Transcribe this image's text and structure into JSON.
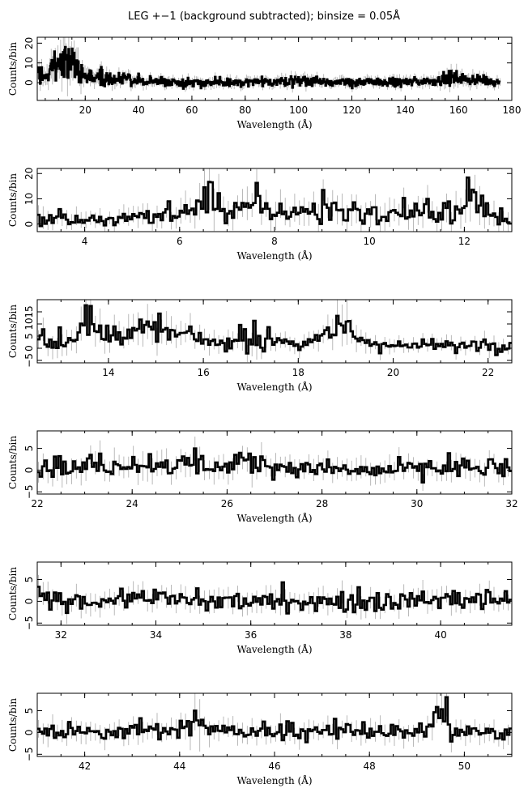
{
  "figure": {
    "title": "LEG +−1 (background subtracted); binsize = 0.05Å"
  },
  "chart_data": [
    {
      "type": "line",
      "title": "",
      "xlabel": "Wavelength (Å)",
      "ylabel": "Counts/bin",
      "xlim": [
        2,
        180
      ],
      "ylim": [
        -9,
        23
      ],
      "xticks": [
        20,
        40,
        60,
        80,
        100,
        120,
        140,
        160,
        180
      ],
      "yticks": [
        0,
        10,
        20
      ],
      "grid": false,
      "data_range": [
        2,
        175.5
      ],
      "bin_width": 0.05,
      "series": [
        {
          "values": [
            [
              5,
              3
            ],
            [
              8,
              10
            ],
            [
              10,
              8
            ],
            [
              12,
              12
            ],
            [
              15,
              11
            ],
            [
              18,
              5
            ],
            [
              20,
              3
            ],
            [
              30,
              2
            ],
            [
              40,
              1
            ],
            [
              60,
              0
            ],
            [
              80,
              0
            ],
            [
              100,
              1
            ],
            [
              120,
              0
            ],
            [
              140,
              0
            ],
            [
              150,
              1
            ],
            [
              155,
              2
            ],
            [
              160,
              2
            ],
            [
              170,
              1
            ],
            [
              175.5,
              0
            ]
          ]
        }
      ]
    },
    {
      "type": "line",
      "title": "",
      "xlabel": "Wavelength (Å)",
      "ylabel": "Counts/bin",
      "xlim": [
        3,
        13
      ],
      "ylim": [
        -3,
        22
      ],
      "xticks": [
        4,
        6,
        8,
        10,
        12
      ],
      "yticks": [
        0,
        10,
        20
      ],
      "grid": false,
      "bin_width": 0.05,
      "series": [
        {
          "values": [
            [
              3,
              3
            ],
            [
              3.5,
              2
            ],
            [
              4,
              2
            ],
            [
              4.5,
              1
            ],
            [
              5,
              3
            ],
            [
              5.5,
              3
            ],
            [
              6,
              4
            ],
            [
              6.3,
              6
            ],
            [
              6.55,
              14
            ],
            [
              6.7,
              8
            ],
            [
              7,
              5
            ],
            [
              7.5,
              6
            ],
            [
              8,
              5
            ],
            [
              8.5,
              5
            ],
            [
              9,
              5
            ],
            [
              9.5,
              6
            ],
            [
              10,
              4
            ],
            [
              10.5,
              5
            ],
            [
              11,
              5
            ],
            [
              11.5,
              5
            ],
            [
              12,
              6
            ],
            [
              12.05,
              15
            ],
            [
              12.2,
              10
            ],
            [
              12.5,
              4
            ],
            [
              13,
              2
            ]
          ]
        }
      ]
    },
    {
      "type": "line",
      "title": "",
      "xlabel": "Wavelength (Å)",
      "ylabel": "Counts/bin",
      "xlim": [
        12.5,
        22.5
      ],
      "ylim": [
        -6,
        20
      ],
      "xticks": [
        14,
        16,
        18,
        20,
        22
      ],
      "yticks": [
        -5,
        0,
        5,
        10,
        15
      ],
      "ytick_labels": [
        "−5",
        "0",
        "5",
        "10",
        "15"
      ],
      "grid": false,
      "bin_width": 0.05,
      "series": [
        {
          "values": [
            [
              12.5,
              3
            ],
            [
              13,
              4
            ],
            [
              13.3,
              6
            ],
            [
              13.55,
              13
            ],
            [
              13.7,
              7
            ],
            [
              14,
              5
            ],
            [
              14.5,
              6
            ],
            [
              15,
              7
            ],
            [
              15.3,
              6
            ],
            [
              16,
              3
            ],
            [
              16.5,
              2
            ],
            [
              17,
              4
            ],
            [
              17.05,
              9
            ],
            [
              17.2,
              4
            ],
            [
              18,
              2
            ],
            [
              18.5,
              3
            ],
            [
              18.97,
              11
            ],
            [
              19.1,
              5
            ],
            [
              19.5,
              2
            ],
            [
              20,
              1
            ],
            [
              20.5,
              1
            ],
            [
              21,
              1
            ],
            [
              21.5,
              1
            ],
            [
              22,
              2
            ],
            [
              22.5,
              1
            ]
          ]
        }
      ]
    },
    {
      "type": "line",
      "title": "",
      "xlabel": "Wavelength (Å)",
      "ylabel": "Counts/bin",
      "xlim": [
        22,
        32
      ],
      "ylim": [
        -5.5,
        9
      ],
      "xticks": [
        22,
        24,
        26,
        28,
        30,
        32
      ],
      "yticks": [
        -5,
        0,
        5
      ],
      "ytick_labels": [
        "−5",
        "0",
        "5"
      ],
      "grid": false,
      "bin_width": 0.05,
      "series": [
        {
          "values": [
            [
              22,
              1
            ],
            [
              23,
              1
            ],
            [
              24,
              1.5
            ],
            [
              24.5,
              2
            ],
            [
              25,
              1
            ],
            [
              26,
              1
            ],
            [
              26.5,
              2
            ],
            [
              27,
              0.5
            ],
            [
              28,
              0
            ],
            [
              29,
              0
            ],
            [
              30,
              0
            ],
            [
              31,
              0.5
            ],
            [
              32,
              0.5
            ]
          ]
        }
      ]
    },
    {
      "type": "line",
      "title": "",
      "xlabel": "Wavelength (Å)",
      "ylabel": "Counts/bin",
      "xlim": [
        31.5,
        41.5
      ],
      "ylim": [
        -5.5,
        9
      ],
      "xticks": [
        32,
        34,
        36,
        38,
        40
      ],
      "yticks": [
        -5,
        0,
        5
      ],
      "ytick_labels": [
        "−5",
        "0",
        "5"
      ],
      "grid": false,
      "bin_width": 0.05,
      "series": [
        {
          "values": [
            [
              31.5,
              0
            ],
            [
              33,
              0.5
            ],
            [
              34,
              0.5
            ],
            [
              35,
              0
            ],
            [
              36,
              0
            ],
            [
              37,
              0
            ],
            [
              38,
              0
            ],
            [
              39,
              0
            ],
            [
              40,
              0.5
            ],
            [
              41,
              0.5
            ],
            [
              41.5,
              0
            ]
          ]
        }
      ]
    },
    {
      "type": "line",
      "title": "",
      "xlabel": "Wavelength (Å)",
      "ylabel": "Counts/bin",
      "xlim": [
        41,
        51
      ],
      "ylim": [
        -5.5,
        9
      ],
      "xticks": [
        42,
        44,
        46,
        48,
        50
      ],
      "yticks": [
        -5,
        0,
        5
      ],
      "ytick_labels": [
        "−5",
        "0",
        "5"
      ],
      "grid": false,
      "bin_width": 0.05,
      "series": [
        {
          "values": [
            [
              41,
              0
            ],
            [
              42,
              0
            ],
            [
              43,
              0.5
            ],
            [
              44,
              0.5
            ],
            [
              44.4,
              5
            ],
            [
              44.5,
              1
            ],
            [
              45,
              0
            ],
            [
              46,
              0
            ],
            [
              47,
              0
            ],
            [
              48,
              0.5
            ],
            [
              49,
              0
            ],
            [
              49.6,
              4
            ],
            [
              49.7,
              0
            ],
            [
              50,
              0
            ],
            [
              51,
              0
            ]
          ]
        }
      ]
    }
  ]
}
